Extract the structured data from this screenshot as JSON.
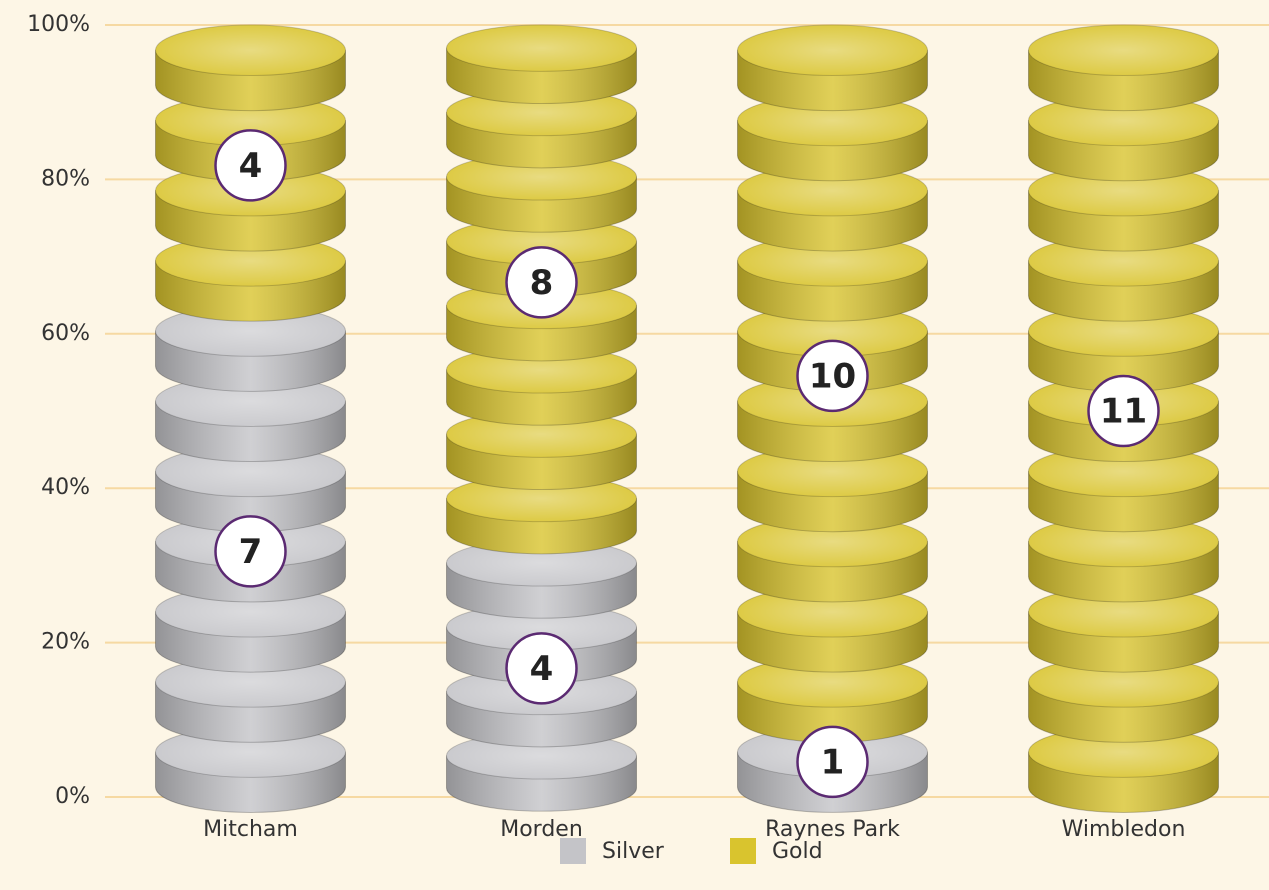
{
  "chart_data": {
    "type": "stacked-percent-coins",
    "categories": [
      "Mitcham",
      "Morden",
      "Raynes Park",
      "Wimbledon"
    ],
    "series": [
      {
        "name": "Silver",
        "color": "#c4c4c8",
        "values": [
          7,
          4,
          1,
          0
        ]
      },
      {
        "name": "Gold",
        "color": "#d9c42e",
        "values": [
          4,
          8,
          10,
          11
        ]
      }
    ],
    "ylim": [
      0,
      100
    ],
    "yticks": [
      {
        "value": 0,
        "label": "0%"
      },
      {
        "value": 20,
        "label": "20%"
      },
      {
        "value": 40,
        "label": "40%"
      },
      {
        "value": 60,
        "label": "60%"
      },
      {
        "value": 80,
        "label": "80%"
      },
      {
        "value": 100,
        "label": "100%"
      }
    ],
    "grid": true,
    "legend": "bottom"
  }
}
